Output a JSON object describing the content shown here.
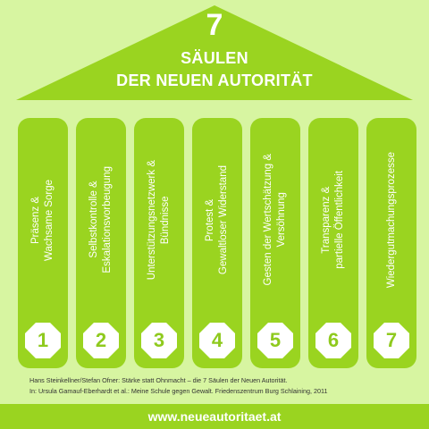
{
  "title": {
    "number": "7",
    "line1": "SÄULEN",
    "line2": "DER NEUEN AUTORITÄT"
  },
  "pillars": [
    {
      "number": "1",
      "line1": "Präsenz &",
      "line2": "Wachsame Sorge"
    },
    {
      "number": "2",
      "line1": "Selbstkontrolle &",
      "line2": "Eskalationsvorbeugung"
    },
    {
      "number": "3",
      "line1": "Unterstützungsnetzwerk &",
      "line2": "Bündnisse"
    },
    {
      "number": "4",
      "line1": "Protest &",
      "line2": "Gewaltloser Widerstand"
    },
    {
      "number": "5",
      "line1": "Gesten der Wertschätzung &",
      "line2": "Versöhnung"
    },
    {
      "number": "6",
      "line1": "Transparenz &",
      "line2": "partielle Öffentlichkeit"
    },
    {
      "number": "7",
      "line1": "Wiedergutmachungsprozesse",
      "line2": ""
    }
  ],
  "source": {
    "line1": "Hans Steinkellner/Stefan Ofner: Stärke statt Ohnmacht – die 7 Säulen der Neuen Autorität.",
    "line2": "In: Ursula Gamauf-Eberhardt et al.: Meine Schule gegen Gewalt. Friedenszentrum Burg Schlaining, 2011"
  },
  "footer": {
    "url": "www.neueautoritaet.at"
  },
  "colors": {
    "background": "#d7f5a1",
    "accent": "#9ad420",
    "text_light": "#ffffff"
  }
}
